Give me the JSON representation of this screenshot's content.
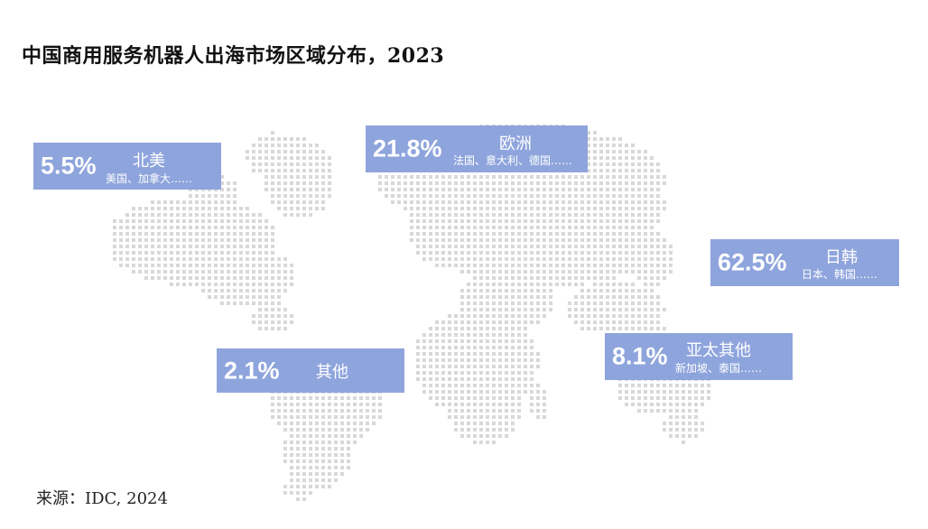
{
  "title": "中国商用服务机器人出海市场区域分布，2023",
  "source": "来源：IDC, 2024",
  "colors": {
    "card_bg": "#8ea4dc",
    "map_dot": "#d8d8d8",
    "text": "#111111"
  },
  "chart_data": {
    "type": "map",
    "title": "中国商用服务机器人出海市场区域分布，2023",
    "regions": [
      {
        "name": "北美",
        "percent": "5.5%",
        "value": 5.5,
        "examples": "美国、加拿大……"
      },
      {
        "name": "欧洲",
        "percent": "21.8%",
        "value": 21.8,
        "examples": "法国、意大利、德国……"
      },
      {
        "name": "日韩",
        "percent": "62.5%",
        "value": 62.5,
        "examples": "日本、韩国……"
      },
      {
        "name": "亚太其他",
        "percent": "8.1%",
        "value": 8.1,
        "examples": "新加坡、泰国……"
      },
      {
        "name": "其他",
        "percent": "2.1%",
        "value": 2.1,
        "examples": ""
      }
    ]
  }
}
